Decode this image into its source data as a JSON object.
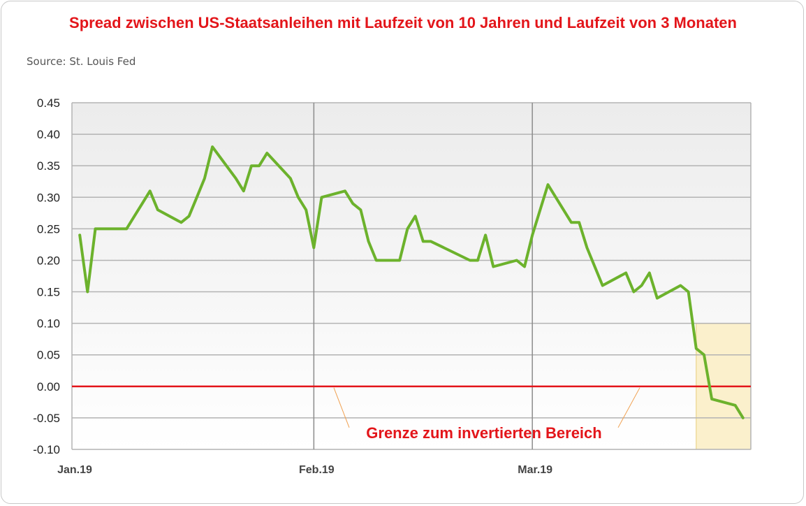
{
  "colors": {
    "title": "#e3151a",
    "source": "#555555",
    "series": "#6cb22c",
    "zero_line": "#e3151a",
    "grid": "#b3b3b3",
    "highlight_fill": "#fbf0cc",
    "highlight_border": "#e8cd7a",
    "annotation": "#e3151a",
    "leader": "#f0a050"
  },
  "chart_data": {
    "type": "line",
    "title": "Spread zwischen US-Staatsanleihen mit Laufzeit von 10 Jahren und Laufzeit von 3 Monaten",
    "source": "Source: St. Louis Fed",
    "xlabel": "",
    "ylabel": "",
    "ylim": [
      -0.1,
      0.45
    ],
    "xlim": [
      "2019-01-01",
      "2019-03-29"
    ],
    "y_ticks": [
      "0.45",
      "0.40",
      "0.35",
      "0.30",
      "0.25",
      "0.20",
      "0.15",
      "0.10",
      "0.05",
      "0.00",
      "-0.05",
      "-0.10"
    ],
    "x_ticks": [
      {
        "date": "2019-01-01",
        "label": "Jan.19"
      },
      {
        "date": "2019-02-01",
        "label": "Feb.19"
      },
      {
        "date": "2019-03-01",
        "label": "Mar.19"
      }
    ],
    "grid": true,
    "series": [
      {
        "points": [
          [
            "2019-01-02",
            0.24
          ],
          [
            "2019-01-03",
            0.15
          ],
          [
            "2019-01-04",
            0.25
          ],
          [
            "2019-01-07",
            0.25
          ],
          [
            "2019-01-08",
            0.25
          ],
          [
            "2019-01-09",
            0.27
          ],
          [
            "2019-01-10",
            0.29
          ],
          [
            "2019-01-11",
            0.31
          ],
          [
            "2019-01-12",
            0.28
          ],
          [
            "2019-01-15",
            0.26
          ],
          [
            "2019-01-16",
            0.27
          ],
          [
            "2019-01-17",
            0.3
          ],
          [
            "2019-01-18",
            0.33
          ],
          [
            "2019-01-19",
            0.38
          ],
          [
            "2019-01-22",
            0.33
          ],
          [
            "2019-01-23",
            0.31
          ],
          [
            "2019-01-24",
            0.35
          ],
          [
            "2019-01-25",
            0.35
          ],
          [
            "2019-01-26",
            0.37
          ],
          [
            "2019-01-29",
            0.33
          ],
          [
            "2019-01-30",
            0.3
          ],
          [
            "2019-01-31",
            0.28
          ],
          [
            "2019-02-01",
            0.22
          ],
          [
            "2019-02-02",
            0.3
          ],
          [
            "2019-02-05",
            0.31
          ],
          [
            "2019-02-06",
            0.29
          ],
          [
            "2019-02-07",
            0.28
          ],
          [
            "2019-02-08",
            0.23
          ],
          [
            "2019-02-09",
            0.2
          ],
          [
            "2019-02-12",
            0.2
          ],
          [
            "2019-02-13",
            0.25
          ],
          [
            "2019-02-14",
            0.27
          ],
          [
            "2019-02-15",
            0.23
          ],
          [
            "2019-02-16",
            0.23
          ],
          [
            "2019-02-21",
            0.2
          ],
          [
            "2019-02-22",
            0.2
          ],
          [
            "2019-02-23",
            0.24
          ],
          [
            "2019-02-24",
            0.19
          ],
          [
            "2019-02-27",
            0.2
          ],
          [
            "2019-02-28",
            0.19
          ],
          [
            "2019-03-01",
            0.24
          ],
          [
            "2019-03-03",
            0.32
          ],
          [
            "2019-03-06",
            0.26
          ],
          [
            "2019-03-07",
            0.26
          ],
          [
            "2019-03-08",
            0.22
          ],
          [
            "2019-03-10",
            0.16
          ],
          [
            "2019-03-13",
            0.18
          ],
          [
            "2019-03-14",
            0.15
          ],
          [
            "2019-03-15",
            0.16
          ],
          [
            "2019-03-16",
            0.18
          ],
          [
            "2019-03-17",
            0.14
          ],
          [
            "2019-03-20",
            0.16
          ],
          [
            "2019-03-21",
            0.15
          ],
          [
            "2019-03-22",
            0.06
          ],
          [
            "2019-03-23",
            0.05
          ],
          [
            "2019-03-24",
            -0.02
          ],
          [
            "2019-03-27",
            -0.03
          ],
          [
            "2019-03-28",
            -0.05
          ]
        ]
      }
    ],
    "reference_line": {
      "y": 0.0
    },
    "highlight_region": {
      "x_from": "2019-03-22",
      "x_to": "2019-03-29",
      "y_from": -0.1,
      "y_to": 0.1
    },
    "annotation": "Grenze zum invertierten Bereich"
  }
}
